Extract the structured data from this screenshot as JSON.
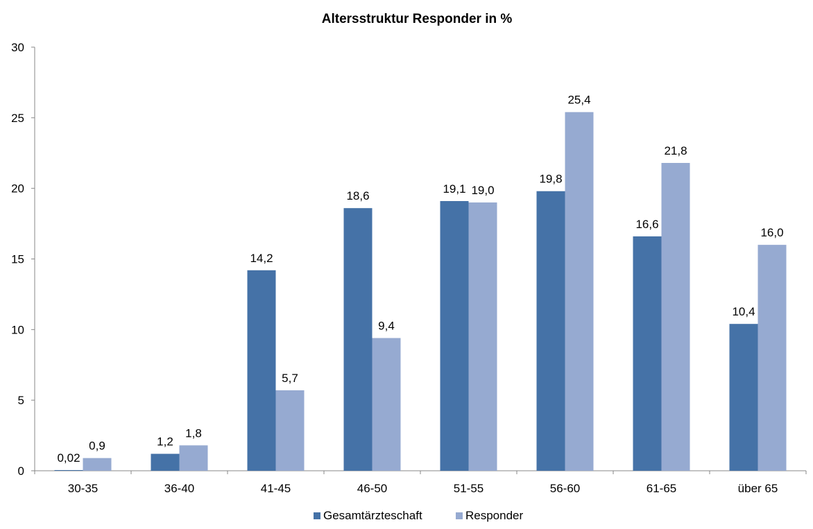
{
  "chart_data": {
    "type": "bar",
    "title": "Altersstruktur Responder in %",
    "xlabel": "",
    "ylabel": "",
    "ylim": [
      0,
      30
    ],
    "yticks": [
      0,
      5,
      10,
      15,
      20,
      25,
      30
    ],
    "grid": false,
    "legend_position": "bottom",
    "categories": [
      "30-35",
      "36-40",
      "41-45",
      "46-50",
      "51-55",
      "56-60",
      "61-65",
      "über 65"
    ],
    "series": [
      {
        "name": "Gesamtärzteschaft",
        "color": "#4572A7",
        "values": [
          0.02,
          1.2,
          14.2,
          18.6,
          19.1,
          19.8,
          16.6,
          10.4
        ],
        "labels": [
          "0,02",
          "1,2",
          "14,2",
          "18,6",
          "19,1",
          "19,8",
          "16,6",
          "10,4"
        ]
      },
      {
        "name": "Responder",
        "color": "#96AAD1",
        "values": [
          0.9,
          1.8,
          5.7,
          9.4,
          19.0,
          25.4,
          21.8,
          16.0
        ],
        "labels": [
          "0,9",
          "1,8",
          "5,7",
          "9,4",
          "19,0",
          "25,4",
          "21,8",
          "16,0"
        ]
      }
    ]
  }
}
